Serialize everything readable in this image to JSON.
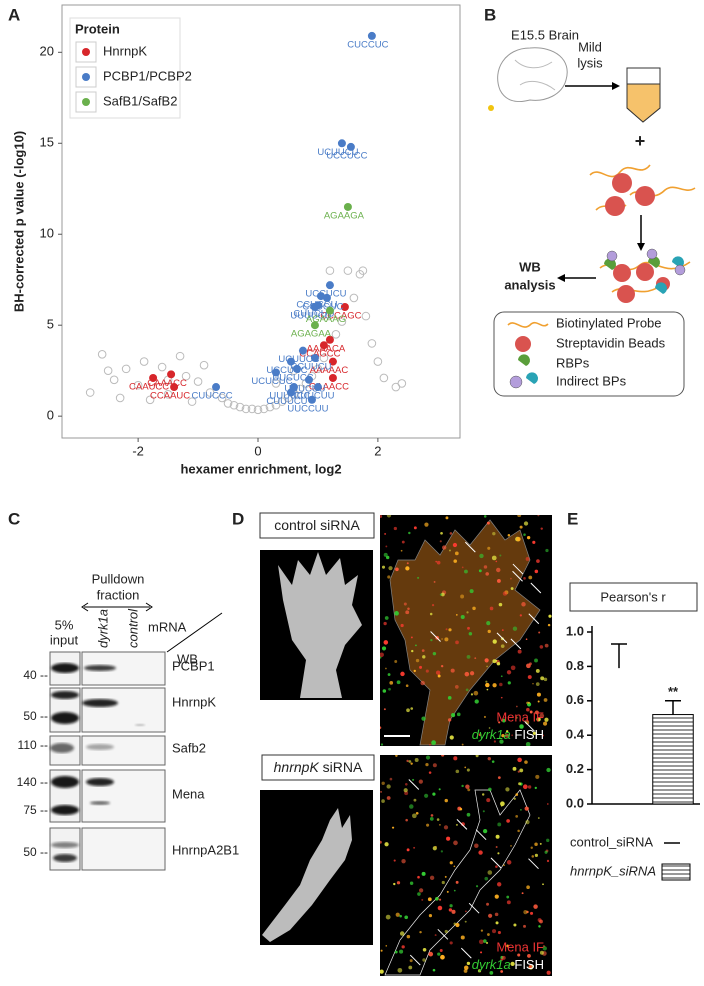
{
  "panel_labels": [
    "A",
    "B",
    "C",
    "D",
    "E"
  ],
  "chart_data": [
    {
      "type": "scatter",
      "xlabel": "hexamer enrichment, log2",
      "ylabel": "BH-corrected p value (-log10)",
      "legend_title": "Protein",
      "legend": "top-left",
      "grid": false,
      "xlim": [
        -3.27,
        3.37
      ],
      "ylim": [
        -1.2,
        22.6
      ],
      "xticks": [
        -2,
        0,
        2
      ],
      "yticks": [
        0,
        5,
        10,
        15,
        20
      ],
      "series": [
        {
          "name": "HnrnpK",
          "color": "#d7262b",
          "x": [
            1.45,
            1.2,
            1.1,
            1.25,
            1.25,
            -1.75,
            -1.45,
            -1.4
          ],
          "y": [
            6.0,
            4.2,
            3.9,
            3.0,
            2.1,
            2.1,
            2.3,
            1.6
          ],
          "labels": [
            "CCCAGC",
            "AAAACA",
            "CCAGCC",
            "AAAAAC",
            "GAAACC",
            "CAAUCC",
            "CAAACC",
            "CCAAUC"
          ]
        },
        {
          "name": "PCBP1/PCBP2",
          "color": "#4a7cc7",
          "x": [
            1.9,
            1.4,
            1.55,
            1.2,
            1.05,
            1.15,
            1.0,
            0.95,
            0.75,
            0.95,
            0.55,
            0.65,
            0.3,
            0.85,
            0.6,
            1.0,
            0.55,
            0.9,
            -0.7
          ],
          "y": [
            20.9,
            15.0,
            14.8,
            7.2,
            6.6,
            6.5,
            6.1,
            6.0,
            3.6,
            3.2,
            3.0,
            2.6,
            2.4,
            2.0,
            1.6,
            1.6,
            1.3,
            0.9,
            1.6
          ],
          "labels": [
            "CUCCUC",
            "UCUUCU",
            "UCCUCC",
            "UCCUCU",
            "CCUCCU",
            "CCUCUC",
            "CUUCUU",
            "UUUUCU",
            "UCUUCC",
            "CCUUCU",
            "UCCUCC",
            "UUCUCC",
            "UCUCUC",
            "UUUCUU",
            "UUUUCC",
            "CUUCUU",
            "CUUUCU",
            "UUCCUU",
            "CUUCCC"
          ]
        },
        {
          "name": "SafB1/SafB2",
          "color": "#6ab04c",
          "x": [
            1.5,
            1.2,
            0.95
          ],
          "y": [
            11.5,
            5.8,
            5.0
          ],
          "labels": [
            "AGAAGA",
            "AGAAAG",
            "AGAGAA"
          ]
        }
      ],
      "background": {
        "color": "#bbbbbb",
        "x": [
          -2.8,
          -2.6,
          -2.4,
          -2.3,
          -2.2,
          -2.0,
          -1.9,
          -1.8,
          -1.6,
          -1.5,
          -1.3,
          -1.2,
          -1.1,
          -1.0,
          -0.9,
          -0.8,
          -0.6,
          -0.5,
          -0.4,
          -0.3,
          -0.2,
          -0.1,
          0,
          0.1,
          0.2,
          0.3,
          0.4,
          0.5,
          0.6,
          0.7,
          0.8,
          0.9,
          1.0,
          1.1,
          1.3,
          1.4,
          1.6,
          1.7,
          1.8,
          1.9,
          2.0,
          2.1,
          2.3,
          2.4,
          1.5,
          1.2,
          -1.5,
          -2.5,
          0.3,
          0.6,
          1.75
        ],
        "y": [
          1.3,
          3.4,
          2.0,
          1.0,
          2.6,
          1.7,
          3.0,
          0.9,
          2.7,
          1.2,
          3.3,
          2.2,
          0.8,
          1.9,
          2.8,
          1.3,
          1.0,
          0.7,
          0.6,
          0.5,
          0.4,
          0.4,
          0.35,
          0.4,
          0.5,
          0.6,
          0.8,
          1.0,
          1.2,
          1.5,
          1.8,
          2.2,
          2.6,
          3.2,
          4.5,
          5.2,
          6.5,
          7.8,
          5.5,
          4.0,
          3.0,
          2.1,
          1.6,
          1.8,
          8.0,
          8.0,
          2.0,
          2.5,
          1.8,
          2.5,
          8.0
        ]
      }
    },
    {
      "type": "bar",
      "title": "Pearson's r",
      "categories": [
        "control_siRNA",
        "hnrnpK_siRNA"
      ],
      "values": [
        0.79,
        0.52
      ],
      "errors": [
        0.14,
        0.08
      ],
      "value_annotations": [
        null,
        "**"
      ],
      "fills": [
        "none",
        "hatch"
      ],
      "legend": "bottom",
      "ylim": [
        0,
        1.0
      ],
      "yticks": [
        {
          "value": 0,
          "label": "0.0"
        },
        0.2,
        0.4,
        0.6,
        0.8,
        {
          "value": 1.0,
          "label": "1.0"
        }
      ]
    }
  ],
  "diagram": {
    "brain": "E15.5 Brain",
    "lysis": [
      "Mild",
      "lysis"
    ],
    "plus": "+",
    "readout": [
      "WB",
      "analysis"
    ],
    "legend": [
      "Biotinylated Probe",
      "Streptavidin Beads",
      "RBPs",
      "Indirect BPs"
    ]
  },
  "blot": {
    "pulldown": [
      "Pulldown",
      "fraction"
    ],
    "input": [
      "5%",
      "input"
    ],
    "lanes": [
      "dyrk1a",
      "control"
    ],
    "corner": [
      "mRNA",
      "WB"
    ],
    "rows": [
      {
        "protein": "PCBP1",
        "markers": [
          "40 --"
        ]
      },
      {
        "protein": "HnrnpK",
        "markers": [
          "50 --"
        ]
      },
      {
        "protein": "Safb2",
        "markers": [
          "110 --"
        ]
      },
      {
        "protein": "Mena",
        "markers": [
          "140 --",
          "75 --"
        ]
      },
      {
        "protein": "HnrnpA2B1",
        "markers": [
          "50 --"
        ]
      }
    ]
  },
  "imaging": {
    "conditions": [
      {
        "gene": "",
        "label": "control siRNA"
      },
      {
        "gene": "hnrnpK",
        "label": " siRNA"
      }
    ],
    "stain": "Mena IF",
    "fish_gene": "dyrk1a",
    "fish": " FISH"
  }
}
